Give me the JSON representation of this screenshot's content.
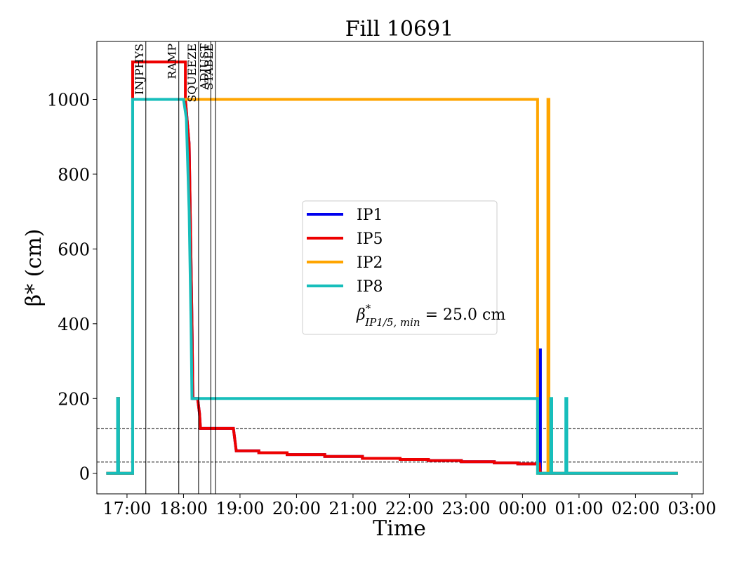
{
  "chart_data": {
    "type": "line",
    "title": "Fill 10691",
    "xlabel": "Time",
    "ylabel": "β* (cm)",
    "x_ticks": [
      "17:00",
      "18:00",
      "19:00",
      "20:00",
      "21:00",
      "22:00",
      "23:00",
      "00:00",
      "01:00",
      "02:00",
      "03:00"
    ],
    "y_ticks": [
      0,
      200,
      400,
      600,
      800,
      1000
    ],
    "xlim": [
      "16:28",
      "03:12"
    ],
    "ylim": [
      -55,
      1155
    ],
    "grid": false,
    "legend_position": "center",
    "hlines": [
      {
        "y": 120,
        "style": "dashed",
        "color": "#000000"
      },
      {
        "y": 30,
        "style": "dashed",
        "color": "#000000"
      }
    ],
    "mode_markers": [
      {
        "label": "INJPHYS",
        "time": "17:20"
      },
      {
        "label": "RAMP",
        "time": "17:55"
      },
      {
        "label": "SQUEEZE",
        "time": "18:16"
      },
      {
        "label": "ADJUST",
        "time": "18:29"
      },
      {
        "label": "STABLE",
        "time": "18:34"
      }
    ],
    "legend_extra": {
      "prefix": "β",
      "superscript": "*",
      "subscript": "IP1/5, min",
      "suffix": " = 25.0 cm"
    },
    "series": [
      {
        "name": "IP1",
        "color": "#0000ee",
        "points": [
          [
            "16:38",
            0
          ],
          [
            "16:50",
            0
          ],
          [
            "16:50",
            200
          ],
          [
            "16:51",
            200
          ],
          [
            "16:51",
            0
          ],
          [
            "17:06",
            0
          ],
          [
            "17:06",
            1000
          ],
          [
            "18:02",
            1000
          ],
          [
            "18:06",
            880
          ],
          [
            "18:09",
            400
          ],
          [
            "18:10",
            200
          ],
          [
            "18:15",
            200
          ],
          [
            "18:17",
            160
          ],
          [
            "18:18",
            120
          ],
          [
            "18:53",
            120
          ],
          [
            "18:56",
            60
          ],
          [
            "19:20",
            60
          ],
          [
            "19:20",
            55
          ],
          [
            "19:50",
            55
          ],
          [
            "19:50",
            50
          ],
          [
            "20:30",
            50
          ],
          [
            "20:30",
            45
          ],
          [
            "21:10",
            45
          ],
          [
            "21:10",
            40
          ],
          [
            "21:50",
            40
          ],
          [
            "21:50",
            37
          ],
          [
            "22:20",
            37
          ],
          [
            "22:20",
            34
          ],
          [
            "22:55",
            34
          ],
          [
            "22:55",
            31
          ],
          [
            "23:30",
            31
          ],
          [
            "23:30",
            28
          ],
          [
            "23:55",
            28
          ],
          [
            "23:55",
            25
          ],
          [
            "00:18",
            25
          ],
          [
            "00:18",
            330
          ],
          [
            "00:19",
            330
          ],
          [
            "00:19",
            0
          ],
          [
            "02:45",
            0
          ]
        ]
      },
      {
        "name": "IP5",
        "color": "#ee0000",
        "points": [
          [
            "16:38",
            0
          ],
          [
            "16:50",
            0
          ],
          [
            "16:50",
            200
          ],
          [
            "16:51",
            200
          ],
          [
            "16:51",
            0
          ],
          [
            "17:06",
            0
          ],
          [
            "17:06",
            1100
          ],
          [
            "18:02",
            1100
          ],
          [
            "18:02",
            1000
          ],
          [
            "18:02",
            1000
          ],
          [
            "18:06",
            880
          ],
          [
            "18:09",
            400
          ],
          [
            "18:10",
            200
          ],
          [
            "18:15",
            200
          ],
          [
            "18:17",
            160
          ],
          [
            "18:18",
            120
          ],
          [
            "18:53",
            120
          ],
          [
            "18:56",
            60
          ],
          [
            "19:20",
            60
          ],
          [
            "19:20",
            55
          ],
          [
            "19:50",
            55
          ],
          [
            "19:50",
            50
          ],
          [
            "20:30",
            50
          ],
          [
            "20:30",
            45
          ],
          [
            "21:10",
            45
          ],
          [
            "21:10",
            40
          ],
          [
            "21:50",
            40
          ],
          [
            "21:50",
            37
          ],
          [
            "22:20",
            37
          ],
          [
            "22:20",
            34
          ],
          [
            "22:55",
            34
          ],
          [
            "22:55",
            31
          ],
          [
            "23:30",
            31
          ],
          [
            "23:30",
            28
          ],
          [
            "23:55",
            28
          ],
          [
            "23:55",
            25
          ],
          [
            "00:18",
            25
          ],
          [
            "00:19",
            0
          ],
          [
            "02:45",
            0
          ]
        ]
      },
      {
        "name": "IP2",
        "color": "#ffa500",
        "points": [
          [
            "16:38",
            0
          ],
          [
            "16:50",
            0
          ],
          [
            "16:50",
            200
          ],
          [
            "16:51",
            200
          ],
          [
            "16:51",
            0
          ],
          [
            "17:06",
            0
          ],
          [
            "17:06",
            1000
          ],
          [
            "00:16",
            1000
          ],
          [
            "00:16",
            0
          ],
          [
            "00:27",
            0
          ],
          [
            "00:27",
            1000
          ],
          [
            "00:28",
            1000
          ],
          [
            "00:28",
            0
          ],
          [
            "02:45",
            0
          ]
        ]
      },
      {
        "name": "IP8",
        "color": "#17bebb",
        "points": [
          [
            "16:38",
            0
          ],
          [
            "16:50",
            0
          ],
          [
            "16:50",
            200
          ],
          [
            "16:51",
            200
          ],
          [
            "16:51",
            0
          ],
          [
            "17:06",
            0
          ],
          [
            "17:06",
            1000
          ],
          [
            "18:00",
            1000
          ],
          [
            "18:03",
            950
          ],
          [
            "18:06",
            700
          ],
          [
            "18:08",
            400
          ],
          [
            "18:09",
            200
          ],
          [
            "00:16",
            200
          ],
          [
            "00:16",
            0
          ],
          [
            "00:30",
            0
          ],
          [
            "00:30",
            200
          ],
          [
            "00:31",
            200
          ],
          [
            "00:31",
            0
          ],
          [
            "00:46",
            0
          ],
          [
            "00:46",
            200
          ],
          [
            "00:47",
            200
          ],
          [
            "00:47",
            0
          ],
          [
            "02:45",
            0
          ]
        ]
      }
    ]
  }
}
